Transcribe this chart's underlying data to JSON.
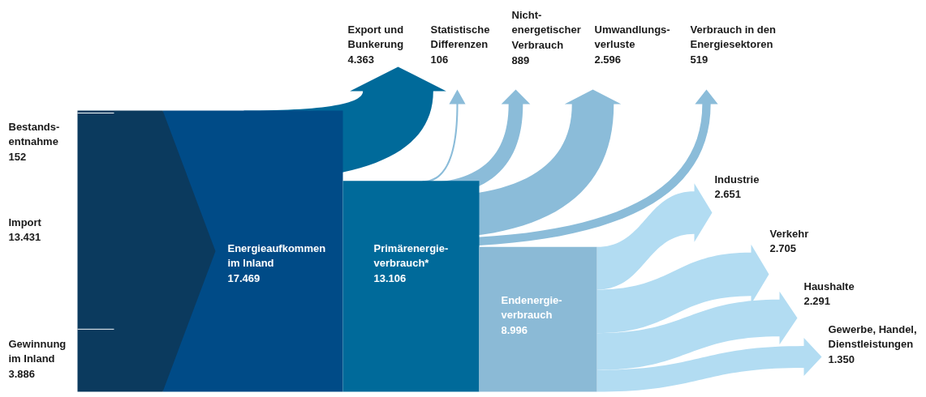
{
  "chart_data": {
    "type": "other",
    "categories": [
      "Bestands-\nentnahme",
      "Import",
      "Gewinnung\nim Inland",
      "Energieaufkommen\nim Inland",
      "Export und\nBunkerung",
      "Statistische\nDifferenzen",
      "Nicht-\nenergetischer\nVerbrauch",
      "Umwandlungs-\nverluste",
      "Verbrauch in den\nEnergiesektoren",
      "Primärenergie-\nverbrauch*",
      "Endenergie-\nverbrauch",
      "Industrie",
      "Verkehr",
      "Haushalte",
      "Gewerbe, Handel,\nDienstleistungen"
    ],
    "values": [
      152,
      13431,
      3886,
      17469,
      4363,
      106,
      889,
      2596,
      519,
      13106,
      8996,
      2651,
      2705,
      2291,
      1350
    ],
    "value_labels": [
      "152",
      "13.431",
      "3.886",
      "17.469",
      "4.363",
      "106",
      "889",
      "2.596",
      "519",
      "13.106",
      "8.996",
      "2.651",
      "2.705",
      "2.291",
      "1.350"
    ],
    "colors": [
      "#0b3a5e",
      "#0b3a5e",
      "#0b3a5e",
      "#004b87",
      "#006a9a",
      "#8bbcd9",
      "#8bbcd9",
      "#8bbcd9",
      "#8bbcd9",
      "#006a9a",
      "#8bbad6",
      "#b2dcf2",
      "#b2dcf2",
      "#b2dcf2",
      "#b2dcf2"
    ]
  }
}
